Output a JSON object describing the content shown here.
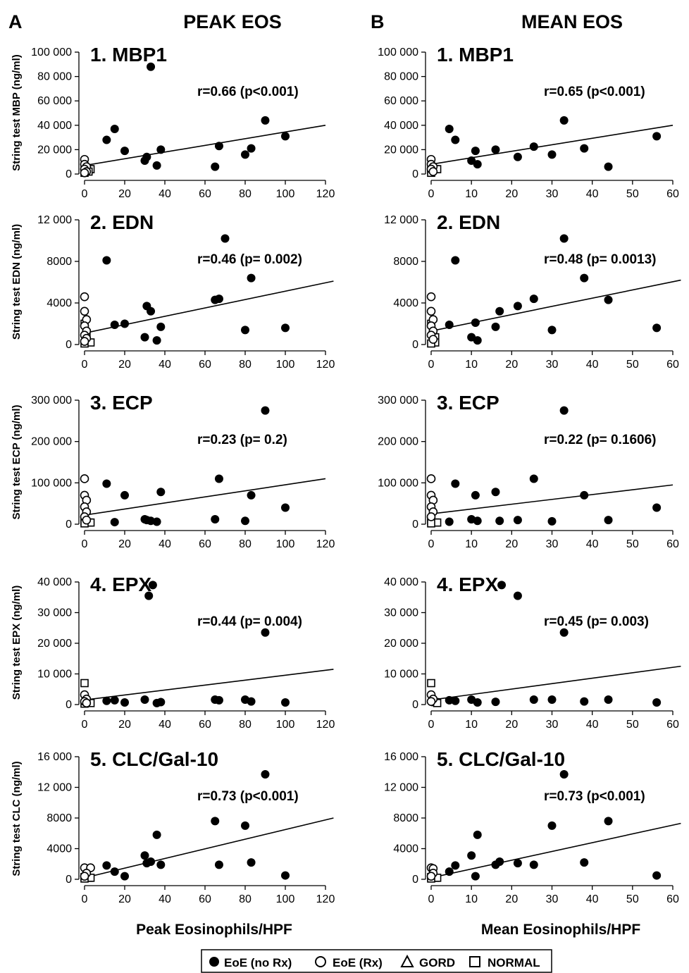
{
  "header": {
    "col_a_letter": "A",
    "col_a_title": "PEAK EOS",
    "col_b_letter": "B",
    "col_b_title": "MEAN EOS"
  },
  "xlabels": {
    "peak": "Peak Eosinophils/HPF",
    "mean": "Mean Eosinophils/HPF"
  },
  "legend": [
    {
      "label": "EoE (no Rx)",
      "symbol": "filled-circle"
    },
    {
      "label": "EoE (Rx)",
      "symbol": "open-circle"
    },
    {
      "label": "GORD",
      "symbol": "open-triangle"
    },
    {
      "label": "NORMAL",
      "symbol": "open-square"
    }
  ],
  "chart_data": [
    {
      "type": "scatter",
      "panel": "A1",
      "title": "1. MBP1",
      "ylabel": "String test MBP (ng/ml)",
      "xlabel": "",
      "annotation": "r=0.66 (p<0.001)",
      "xlim": [
        0,
        120
      ],
      "ylim": [
        0,
        100000
      ],
      "xticks": [
        "0",
        "20",
        "40",
        "60",
        "80",
        "100",
        "120"
      ],
      "yticks": [
        "0",
        "20 000",
        "40 000",
        "60 000",
        "80 000",
        "100 000"
      ],
      "fit": [
        [
          0,
          7000
        ],
        [
          120,
          40000
        ]
      ],
      "points_eoe_norx": [
        [
          11,
          28000
        ],
        [
          15,
          37000
        ],
        [
          20,
          19000
        ],
        [
          30,
          11000
        ],
        [
          31,
          14000
        ],
        [
          33,
          88000
        ],
        [
          36,
          7000
        ],
        [
          38,
          20000
        ],
        [
          65,
          6000
        ],
        [
          67,
          23000
        ],
        [
          80,
          16000
        ],
        [
          83,
          21000
        ],
        [
          90,
          44000
        ],
        [
          100,
          31000
        ]
      ],
      "points_eoe_rx": [
        [
          0,
          12000
        ],
        [
          0,
          8000
        ],
        [
          1,
          6000
        ],
        [
          0,
          4000
        ],
        [
          1,
          2000
        ],
        [
          0,
          1000
        ]
      ],
      "points_normal": [
        [
          0,
          3000
        ],
        [
          1,
          4000
        ],
        [
          3,
          4000
        ],
        [
          2,
          2000
        ],
        [
          0,
          1000
        ]
      ]
    },
    {
      "type": "scatter",
      "panel": "B1",
      "title": "1. MBP1",
      "ylabel": "",
      "xlabel": "",
      "annotation": "r=0.65 (p<0.001)",
      "xlim": [
        0,
        60
      ],
      "ylim": [
        0,
        100000
      ],
      "xticks": [
        "0",
        "10",
        "20",
        "30",
        "40",
        "50",
        "60"
      ],
      "yticks": [
        "0",
        "20 000",
        "40 000",
        "60 000",
        "80 000",
        "100 000"
      ],
      "fit": [
        [
          0,
          8000
        ],
        [
          60,
          40000
        ]
      ],
      "points_eoe_norx": [
        [
          4.5,
          37000
        ],
        [
          6,
          28000
        ],
        [
          10,
          11000
        ],
        [
          11,
          19000
        ],
        [
          11.5,
          8000
        ],
        [
          16,
          20000
        ],
        [
          21.5,
          14000
        ],
        [
          25.5,
          22500
        ],
        [
          30,
          16000
        ],
        [
          33,
          44000
        ],
        [
          38,
          21000
        ],
        [
          44,
          6000
        ],
        [
          56,
          31000
        ]
      ],
      "points_eoe_rx": [
        [
          0,
          12000
        ],
        [
          0,
          8000
        ],
        [
          0.5,
          6000
        ],
        [
          0,
          4000
        ],
        [
          0.5,
          2000
        ]
      ],
      "points_normal": [
        [
          0,
          3000
        ],
        [
          1,
          4000
        ],
        [
          1.5,
          4000
        ],
        [
          0,
          1000
        ]
      ]
    },
    {
      "type": "scatter",
      "panel": "A2",
      "title": "2. EDN",
      "ylabel": "String test EDN (ng/ml)",
      "xlabel": "",
      "annotation": "r=0.46 (p= 0.002)",
      "xlim": [
        0,
        120
      ],
      "ylim": [
        0,
        12000
      ],
      "xticks": [
        "0",
        "20",
        "40",
        "60",
        "80",
        "100",
        "120"
      ],
      "yticks": [
        "0",
        "4000",
        "8000",
        "12 000"
      ],
      "fit": [
        [
          0,
          1100
        ],
        [
          124,
          6100
        ]
      ],
      "points_eoe_norx": [
        [
          11,
          8100
        ],
        [
          15,
          1900
        ],
        [
          20,
          2000
        ],
        [
          30,
          700
        ],
        [
          31,
          3700
        ],
        [
          33,
          3200
        ],
        [
          36,
          400
        ],
        [
          38,
          1700
        ],
        [
          65,
          4300
        ],
        [
          67,
          4400
        ],
        [
          70,
          10200
        ],
        [
          80,
          1400
        ],
        [
          83,
          6400
        ],
        [
          100,
          1600
        ]
      ],
      "points_eoe_rx": [
        [
          0,
          4600
        ],
        [
          0,
          3200
        ],
        [
          1,
          2400
        ],
        [
          0,
          1800
        ],
        [
          1,
          1300
        ],
        [
          0,
          900
        ],
        [
          1,
          600
        ],
        [
          0,
          300
        ]
      ],
      "points_normal": [
        [
          0,
          2000
        ],
        [
          1,
          800
        ],
        [
          3,
          200
        ],
        [
          0,
          100
        ]
      ]
    },
    {
      "type": "scatter",
      "panel": "B2",
      "title": "2. EDN",
      "ylabel": "",
      "xlabel": "",
      "annotation": "r=0.48 (p= 0.0013)",
      "xlim": [
        0,
        60
      ],
      "ylim": [
        0,
        12000
      ],
      "xticks": [
        "0",
        "10",
        "20",
        "30",
        "40",
        "50",
        "60"
      ],
      "yticks": [
        "0",
        "4000",
        "8000",
        "12 000"
      ],
      "fit": [
        [
          0,
          1300
        ],
        [
          62,
          6200
        ]
      ],
      "points_eoe_norx": [
        [
          4.5,
          1900
        ],
        [
          6,
          8100
        ],
        [
          10,
          700
        ],
        [
          11,
          2100
        ],
        [
          11.5,
          400
        ],
        [
          16,
          1700
        ],
        [
          17,
          3200
        ],
        [
          21.5,
          3700
        ],
        [
          25.5,
          4400
        ],
        [
          30,
          1400
        ],
        [
          33,
          10200
        ],
        [
          38,
          6400
        ],
        [
          44,
          4300
        ],
        [
          56,
          1600
        ]
      ],
      "points_eoe_rx": [
        [
          0,
          4600
        ],
        [
          0,
          3200
        ],
        [
          0.5,
          2400
        ],
        [
          0,
          1800
        ],
        [
          0.5,
          1300
        ],
        [
          0,
          900
        ],
        [
          0.5,
          500
        ]
      ],
      "points_normal": [
        [
          0,
          2000
        ],
        [
          1,
          700
        ],
        [
          1,
          200
        ],
        [
          0,
          100
        ]
      ]
    },
    {
      "type": "scatter",
      "panel": "A3",
      "title": "3. ECP",
      "ylabel": "String test ECP (ng/ml)",
      "xlabel": "",
      "annotation": "r=0.23 (p= 0.2)",
      "xlim": [
        0,
        120
      ],
      "ylim": [
        0,
        300000
      ],
      "xticks": [
        "0",
        "20",
        "40",
        "60",
        "80",
        "100",
        "120"
      ],
      "yticks": [
        "0",
        "100 000",
        "200 000",
        "300 000"
      ],
      "fit": [
        [
          0,
          22000
        ],
        [
          120,
          110000
        ]
      ],
      "points_eoe_norx": [
        [
          11,
          98000
        ],
        [
          15,
          5000
        ],
        [
          20,
          70000
        ],
        [
          30,
          12000
        ],
        [
          31,
          10000
        ],
        [
          33,
          8000
        ],
        [
          36,
          6000
        ],
        [
          38,
          78000
        ],
        [
          65,
          12000
        ],
        [
          67,
          110000
        ],
        [
          80,
          8000
        ],
        [
          83,
          70000
        ],
        [
          90,
          275000
        ],
        [
          100,
          40000
        ]
      ],
      "points_eoe_rx": [
        [
          0,
          110000
        ],
        [
          0,
          70000
        ],
        [
          1,
          58000
        ],
        [
          0,
          42000
        ],
        [
          1,
          30000
        ],
        [
          0,
          18000
        ],
        [
          1,
          10000
        ]
      ],
      "points_normal": [
        [
          0,
          8000
        ],
        [
          2,
          4000
        ],
        [
          3,
          4000
        ],
        [
          0,
          2000
        ]
      ]
    },
    {
      "type": "scatter",
      "panel": "B3",
      "title": "3. ECP",
      "ylabel": "",
      "xlabel": "",
      "annotation": "r=0.22 (p= 0.1606)",
      "xlim": [
        0,
        60
      ],
      "ylim": [
        0,
        300000
      ],
      "xticks": [
        "0",
        "10",
        "20",
        "30",
        "40",
        "50",
        "60"
      ],
      "yticks": [
        "0",
        "100 000",
        "200 000",
        "300 000"
      ],
      "fit": [
        [
          0,
          25000
        ],
        [
          60,
          95000
        ]
      ],
      "points_eoe_norx": [
        [
          4.5,
          6000
        ],
        [
          6,
          98000
        ],
        [
          10,
          12000
        ],
        [
          11,
          70000
        ],
        [
          11.5,
          8000
        ],
        [
          16,
          78000
        ],
        [
          17,
          8000
        ],
        [
          21.5,
          10000
        ],
        [
          25.5,
          110000
        ],
        [
          30,
          7000
        ],
        [
          33,
          275000
        ],
        [
          38,
          70000
        ],
        [
          44,
          10000
        ],
        [
          56,
          40000
        ]
      ],
      "points_eoe_rx": [
        [
          0,
          110000
        ],
        [
          0,
          70000
        ],
        [
          0.5,
          58000
        ],
        [
          0,
          42000
        ],
        [
          0.5,
          30000
        ],
        [
          0,
          18000
        ]
      ],
      "points_normal": [
        [
          0,
          8000
        ],
        [
          1,
          4000
        ],
        [
          1.5,
          4000
        ],
        [
          0,
          2000
        ]
      ]
    },
    {
      "type": "scatter",
      "panel": "A4",
      "title": "4. EPX",
      "ylabel": "String test EPX (ng/ml)",
      "xlabel": "",
      "annotation": "r=0.44 (p= 0.004)",
      "xlim": [
        0,
        120
      ],
      "ylim": [
        0,
        40000
      ],
      "xticks": [
        "0",
        "20",
        "40",
        "60",
        "80",
        "100",
        "120"
      ],
      "yticks": [
        "0",
        "10 000",
        "20 000",
        "30 000",
        "40 000"
      ],
      "fit": [
        [
          0,
          1500
        ],
        [
          124,
          11500
        ]
      ],
      "points_eoe_norx": [
        [
          11,
          1200
        ],
        [
          15,
          1400
        ],
        [
          20,
          700
        ],
        [
          30,
          1600
        ],
        [
          32,
          35500
        ],
        [
          34,
          39000
        ],
        [
          36,
          500
        ],
        [
          38,
          800
        ],
        [
          65,
          1600
        ],
        [
          67,
          1400
        ],
        [
          80,
          1600
        ],
        [
          83,
          1000
        ],
        [
          90,
          23500
        ],
        [
          100,
          700
        ]
      ],
      "points_eoe_rx": [
        [
          0,
          3200
        ],
        [
          1,
          1800
        ],
        [
          0,
          1000
        ],
        [
          1,
          500
        ]
      ],
      "points_normal": [
        [
          0,
          7000
        ],
        [
          1,
          800
        ],
        [
          3,
          500
        ],
        [
          0,
          300
        ]
      ]
    },
    {
      "type": "scatter",
      "panel": "B4",
      "title": "4. EPX",
      "ylabel": "",
      "xlabel": "",
      "annotation": "r=0.45 (p= 0.003)",
      "xlim": [
        0,
        60
      ],
      "ylim": [
        0,
        40000
      ],
      "xticks": [
        "0",
        "10",
        "20",
        "30",
        "40",
        "50",
        "60"
      ],
      "yticks": [
        "0",
        "10 000",
        "20 000",
        "30 000",
        "40 000"
      ],
      "fit": [
        [
          0,
          1500
        ],
        [
          62,
          12500
        ]
      ],
      "points_eoe_norx": [
        [
          4.5,
          1400
        ],
        [
          6,
          1200
        ],
        [
          10,
          1600
        ],
        [
          11.5,
          700
        ],
        [
          16,
          900
        ],
        [
          17.5,
          39000
        ],
        [
          21.5,
          35500
        ],
        [
          25.5,
          1600
        ],
        [
          30,
          1600
        ],
        [
          33,
          23500
        ],
        [
          38,
          1000
        ],
        [
          44,
          1600
        ],
        [
          56,
          700
        ]
      ],
      "points_eoe_rx": [
        [
          0,
          3200
        ],
        [
          0.5,
          1800
        ],
        [
          0,
          1000
        ]
      ],
      "points_normal": [
        [
          0,
          7000
        ],
        [
          1,
          800
        ],
        [
          1.5,
          500
        ]
      ]
    },
    {
      "type": "scatter",
      "panel": "A5",
      "title": "5. CLC/Gal-10",
      "ylabel": "String test CLC (ng/ml)",
      "xlabel": "Peak Eosinophils/HPF",
      "annotation": "r=0.73 (p<0.001)",
      "xlim": [
        0,
        120
      ],
      "ylim": [
        0,
        16000
      ],
      "xticks": [
        "0",
        "20",
        "40",
        "60",
        "80",
        "100",
        "120"
      ],
      "yticks": [
        "0",
        "4000",
        "8000",
        "12 000",
        "16 000"
      ],
      "fit": [
        [
          0,
          200
        ],
        [
          124,
          8000
        ]
      ],
      "points_eoe_norx": [
        [
          11,
          1800
        ],
        [
          15,
          1000
        ],
        [
          20,
          400
        ],
        [
          30,
          3100
        ],
        [
          31,
          2100
        ],
        [
          33,
          2300
        ],
        [
          36,
          5800
        ],
        [
          38,
          1900
        ],
        [
          65,
          7600
        ],
        [
          67,
          1900
        ],
        [
          80,
          7000
        ],
        [
          83,
          2200
        ],
        [
          90,
          13700
        ],
        [
          100,
          500
        ]
      ],
      "points_eoe_rx": [
        [
          0,
          1500
        ],
        [
          3,
          1500
        ],
        [
          1,
          800
        ],
        [
          0,
          400
        ]
      ],
      "points_normal": [
        [
          0,
          300
        ],
        [
          2,
          200
        ],
        [
          3,
          200
        ],
        [
          0,
          100
        ]
      ]
    },
    {
      "type": "scatter",
      "panel": "B5",
      "title": "5. CLC/Gal-10",
      "ylabel": "",
      "xlabel": "Mean Eosinophils/HPF",
      "annotation": "r=0.73 (p<0.001)",
      "xlim": [
        0,
        60
      ],
      "ylim": [
        0,
        16000
      ],
      "xticks": [
        "0",
        "10",
        "20",
        "30",
        "40",
        "50",
        "60"
      ],
      "yticks": [
        "0",
        "4000",
        "8000",
        "12 000",
        "16 000"
      ],
      "fit": [
        [
          0,
          200
        ],
        [
          62,
          7300
        ]
      ],
      "points_eoe_norx": [
        [
          4.5,
          1000
        ],
        [
          6,
          1800
        ],
        [
          10,
          3100
        ],
        [
          11.5,
          5800
        ],
        [
          11,
          400
        ],
        [
          16,
          1900
        ],
        [
          17,
          2300
        ],
        [
          21.5,
          2100
        ],
        [
          25.5,
          1900
        ],
        [
          30,
          7000
        ],
        [
          33,
          13700
        ],
        [
          38,
          2200
        ],
        [
          44,
          7600
        ],
        [
          56,
          500
        ]
      ],
      "points_eoe_rx": [
        [
          0,
          1500
        ],
        [
          0.5,
          1400
        ],
        [
          0.5,
          800
        ],
        [
          0,
          400
        ]
      ],
      "points_normal": [
        [
          0,
          300
        ],
        [
          1,
          200
        ],
        [
          1.5,
          200
        ],
        [
          0,
          100
        ]
      ]
    }
  ]
}
